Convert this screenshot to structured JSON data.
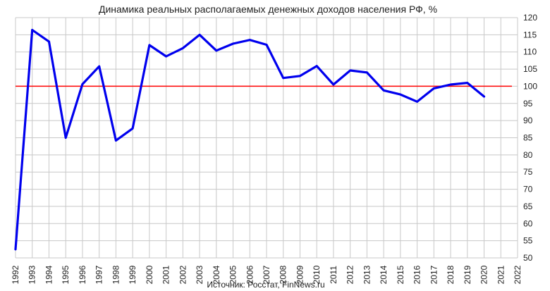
{
  "chart_data": {
    "type": "line",
    "title": "Динамика реальных располагаемых денежных доходов населения РФ, %",
    "source": "Источник: Росстат, FinNews.ru",
    "x": [
      1992,
      1993,
      1994,
      1995,
      1996,
      1997,
      1998,
      1999,
      2000,
      2001,
      2002,
      2003,
      2004,
      2005,
      2006,
      2007,
      2008,
      2009,
      2010,
      2011,
      2012,
      2013,
      2014,
      2015,
      2016,
      2017,
      2018,
      2019,
      2020
    ],
    "x_ticks": [
      1992,
      1993,
      1994,
      1995,
      1996,
      1997,
      1998,
      1999,
      2000,
      2001,
      2002,
      2003,
      2004,
      2005,
      2006,
      2007,
      2008,
      2009,
      2010,
      2011,
      2012,
      2013,
      2014,
      2015,
      2016,
      2017,
      2018,
      2019,
      2020,
      2021,
      2022
    ],
    "xlim": [
      1992,
      2022
    ],
    "ylim": [
      50,
      120
    ],
    "y_ticks": [
      50,
      55,
      60,
      65,
      70,
      75,
      80,
      85,
      90,
      95,
      100,
      105,
      110,
      115,
      120
    ],
    "y_axis_side": "right",
    "grid": true,
    "reference_line": {
      "value": 100,
      "color": "#ff0000"
    },
    "series": [
      {
        "color": "#0000ee",
        "values": [
          52.5,
          116.4,
          113.0,
          85.0,
          100.6,
          105.8,
          84.2,
          87.7,
          112.0,
          108.7,
          111.1,
          115.0,
          110.4,
          112.4,
          113.5,
          112.1,
          102.4,
          103.0,
          105.9,
          100.5,
          104.6,
          104.0,
          98.8,
          97.6,
          95.5,
          99.4,
          100.5,
          101.0,
          97.0
        ]
      }
    ]
  }
}
